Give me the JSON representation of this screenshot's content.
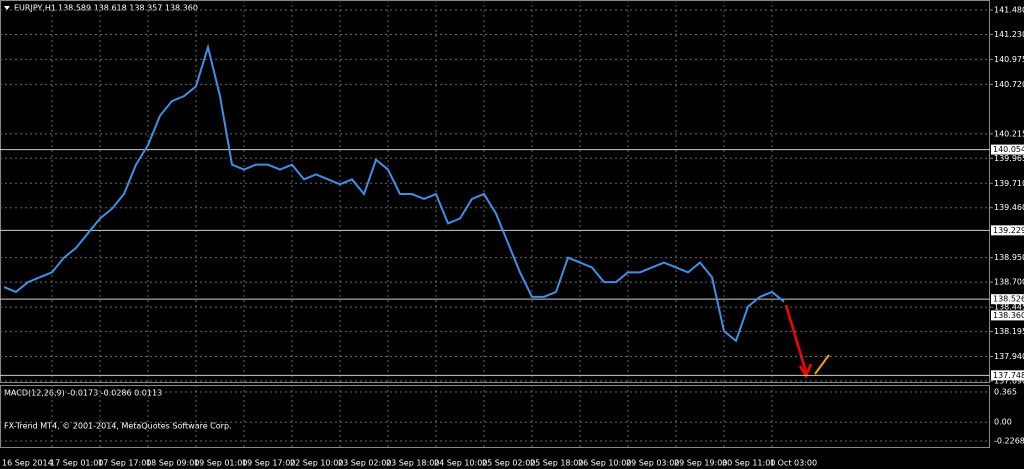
{
  "chart_data": [
    {
      "type": "line",
      "symbol": "EURJPY,H1",
      "ohlc": "138.589 138.618 138.357 138.360",
      "watermark": "FX-Trend MT4, © 2001-2014, MetaQuotes Software Corp.",
      "categories": [
        "16 Sep 2014",
        null,
        null,
        null,
        "17 Sep 01:00",
        null,
        null,
        null,
        "17 Sep 17:00",
        null,
        null,
        null,
        "18 Sep 09:00",
        null,
        null,
        null,
        "19 Sep 01:00",
        null,
        null,
        null,
        "19 Sep 17:00",
        null,
        null,
        null,
        "22 Sep 10:00",
        null,
        null,
        null,
        "23 Sep 02:00",
        null,
        null,
        null,
        "23 Sep 18:00",
        null,
        null,
        null,
        "24 Sep 10:00",
        null,
        null,
        null,
        "25 Sep 02:00",
        null,
        null,
        null,
        "25 Sep 18:00",
        null,
        null,
        null,
        "26 Sep 10:00",
        null,
        null,
        null,
        "29 Sep 03:00",
        null,
        null,
        null,
        "29 Sep 19:00",
        null,
        null,
        null,
        "30 Sep 11:00",
        null,
        null,
        null,
        "1 Oct 03:00",
        null
      ],
      "series": [
        {
          "color": "#3f8fe8",
          "values": [
            138.65,
            138.6,
            138.7,
            138.75,
            138.8,
            138.95,
            139.05,
            139.2,
            139.35,
            139.45,
            139.6,
            139.9,
            140.1,
            140.4,
            140.55,
            140.6,
            140.7,
            141.1,
            140.6,
            139.9,
            139.85,
            139.9,
            139.9,
            139.85,
            139.9,
            139.75,
            139.8,
            139.75,
            139.7,
            139.75,
            139.6,
            139.95,
            139.85,
            139.6,
            139.6,
            139.55,
            139.6,
            139.3,
            139.35,
            139.55,
            139.6,
            139.4,
            139.1,
            138.8,
            138.55,
            138.55,
            138.6,
            138.95,
            138.9,
            138.85,
            138.7,
            138.7,
            138.8,
            138.8,
            138.85,
            138.9,
            138.85,
            138.8,
            138.9,
            138.75,
            138.2,
            138.1,
            138.45,
            138.55,
            138.6,
            138.5
          ]
        }
      ],
      "ylim": [
        137.69,
        141.48
      ],
      "yticks": [
        {
          "value": 141.48,
          "label": "141.480"
        },
        {
          "value": 141.23,
          "label": "141.230"
        },
        {
          "value": 140.975,
          "label": "140.975"
        },
        {
          "value": 140.72,
          "label": "140.720"
        },
        {
          "value": 140.215,
          "label": "140.215"
        },
        {
          "value": 139.965,
          "label": "139.965"
        },
        {
          "value": 139.71,
          "label": "139.710"
        },
        {
          "value": 139.46,
          "label": "139.460"
        },
        {
          "value": 138.95,
          "label": "138.950"
        },
        {
          "value": 138.7,
          "label": "138.700"
        },
        {
          "value": 138.445,
          "label": "138.445"
        },
        {
          "value": 138.195,
          "label": "138.195"
        },
        {
          "value": 137.94,
          "label": "137.940"
        },
        {
          "value": 137.69,
          "label": "137.690"
        }
      ],
      "levels": [
        {
          "value": 140.054,
          "label": "140.054"
        },
        {
          "value": 139.229,
          "label": "139.229"
        },
        {
          "value": 138.526,
          "label": "138.526"
        },
        {
          "value": 137.748,
          "label": "137.748"
        }
      ],
      "current_price": {
        "value": 138.36,
        "label": "138.360"
      },
      "grid": true
    },
    {
      "type": "indicator",
      "title": "MACD(12,26,9) -0.0173 -0.0286 0.0113",
      "ylim": [
        -0.2268,
        0.365
      ],
      "yticks": [
        0.365,
        {
          "value": 0,
          "label": "0.00"
        },
        -0.2268
      ]
    }
  ]
}
